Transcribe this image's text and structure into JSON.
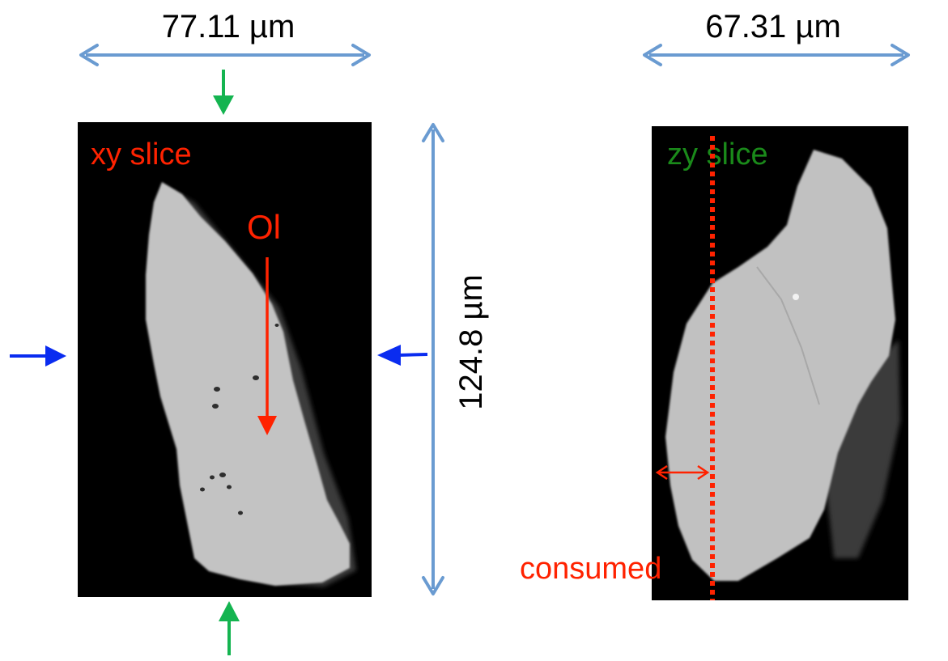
{
  "left_panel": {
    "slice_label": "xy slice",
    "mineral_label": "Ol",
    "width_measure": "77.11 µm",
    "height_measure": "124.8 µm"
  },
  "right_panel": {
    "slice_label": "zy slice",
    "width_measure": "67.31 µm",
    "consumed_label": "consumed"
  },
  "colors": {
    "measure_arrow": "#6a9bd1",
    "green_arrow": "#14b450",
    "blue_arrow": "#0a2cf0",
    "red": "#ff2200",
    "zy_label": "#1a8a1a",
    "grain": "#c4c4c4",
    "background": "#000000"
  }
}
